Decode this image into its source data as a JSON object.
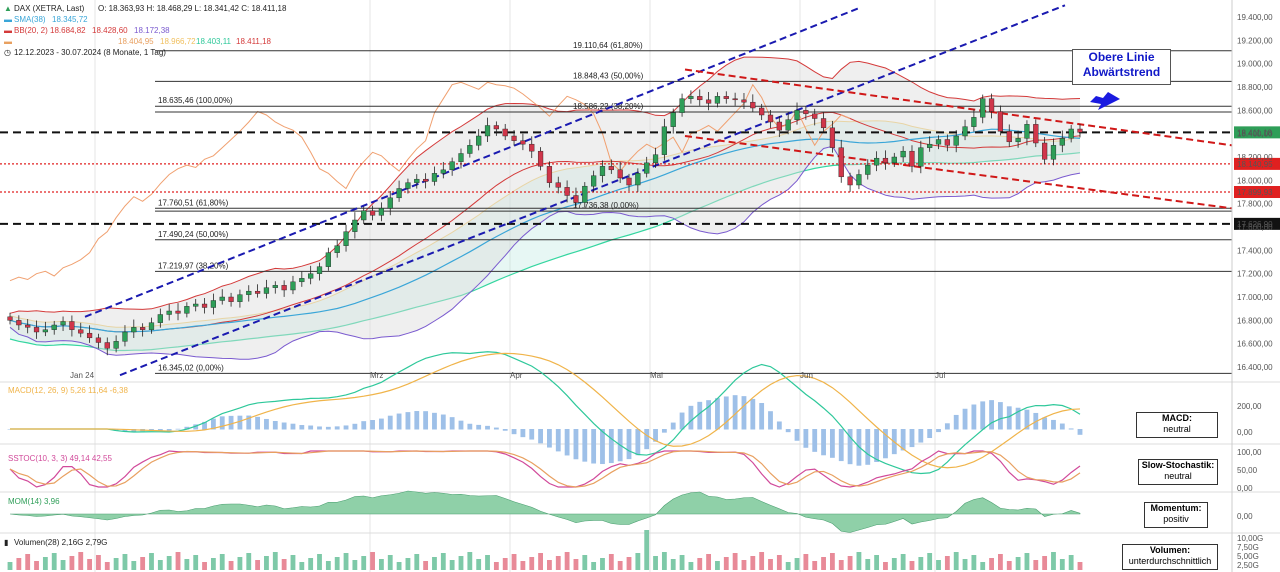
{
  "header": {
    "instrument": "DAX (XETRA, Last)",
    "ohlc": "O: 18.363,93  H: 18.468,29  L: 18.341,42  C: 18.411,18",
    "sma_label": "SMA(38)",
    "sma_value": "18.345,72",
    "bb_label": "BB(20, 2)",
    "bb_values": [
      "18.684,82",
      "18.428,60",
      "18.172,38"
    ],
    "ichimoku_values": [
      "18.404,95",
      "18.966,72",
      "18.403,11",
      "18.411,18"
    ],
    "range": "12.12.2023 - 30.07.2024 (8 Monate, 1 Tag)"
  },
  "colors": {
    "up": "#2e9e58",
    "down": "#d0364a",
    "sma": "#3aa6d8",
    "bb": "#d43a3a",
    "channel_up": "#1a1ab0",
    "channel_down": "#d01818",
    "cloud": "#9fe0d4",
    "macd": "#2ec89a",
    "signal": "#f0b44a",
    "stoch_k": "#d14a9a",
    "stoch_d": "#e8a060",
    "volume_up": "#7ec9a8",
    "volume_down": "#e88a98"
  },
  "fib_levels": [
    {
      "label": "19.110,64 (61,80%)",
      "value": 19110.64
    },
    {
      "label": "18.848,43 (50,00%)",
      "value": 18848.43
    },
    {
      "label": "18.635,46 (100,00%)",
      "value": 18635.46
    },
    {
      "label": "18.586,22 (38,20%)",
      "value": 18586.22
    },
    {
      "label": "17.760,51 (61,80%)",
      "value": 17760.51
    },
    {
      "label": "17.736,38 (0,00%)",
      "value": 17736.38
    },
    {
      "label": "17.490,24 (50,00%)",
      "value": 17490.24
    },
    {
      "label": "17.219,97 (38,20%)",
      "value": 17219.97
    },
    {
      "label": "16.345,02 (0,00%)",
      "value": 16345.02
    }
  ],
  "price_tags": [
    {
      "label": "18.411,18",
      "value": 18411.18,
      "kind": "last"
    },
    {
      "label": "18.140,95",
      "value": 18140.95,
      "kind": "red"
    },
    {
      "label": "17.899,93",
      "value": 17899.93,
      "kind": "red"
    },
    {
      "label": "17.626,90",
      "value": 17626.9,
      "kind": "black"
    }
  ],
  "callout": {
    "line1": "Obere Linie",
    "line2": "Abwärtstrend"
  },
  "panels": {
    "macd": {
      "legend": "MACD(12, 26, 9) 5,26  11,64  -6,38",
      "box": [
        "MACD:",
        "neutral"
      ],
      "ticks": [
        "200,00",
        "0,00"
      ]
    },
    "stoch": {
      "legend": "SSTOC(10, 3, 3) 49,14  42,55",
      "box": [
        "Slow-Stochastik:",
        "neutral"
      ],
      "ticks": [
        "100,00",
        "50,00",
        "0,00"
      ]
    },
    "mom": {
      "legend": "MOM(14) 3,96",
      "box": [
        "Momentum:",
        "positiv"
      ],
      "ticks": [
        "0,00"
      ]
    },
    "vol": {
      "legend": "Volumen(28) 2,16G  2,79G",
      "box": [
        "Volumen:",
        "unterdurchschnittlich"
      ],
      "ticks": [
        "10,00G",
        "7,50G",
        "5,00G",
        "2,50G"
      ]
    }
  },
  "chart_data": {
    "type": "candlestick",
    "title": "DAX (XETRA, Last)",
    "y_ticks": [
      "19.400,00",
      "19.200,00",
      "19.000,00",
      "18.800,00",
      "18.600,00",
      "18.400,00",
      "18.200,00",
      "18.000,00",
      "17.800,00",
      "17.600,00",
      "17.400,00",
      "17.200,00",
      "17.000,00",
      "16.800,00",
      "16.600,00",
      "16.400,00"
    ],
    "ylim": [
      16300,
      19480
    ],
    "x_labels": [
      "Jan 24",
      "Mrz",
      "Apr",
      "Mai",
      "Jun",
      "Jul"
    ],
    "close": [
      16800,
      16760,
      16740,
      16700,
      16720,
      16760,
      16790,
      16720,
      16690,
      16650,
      16610,
      16560,
      16620,
      16700,
      16740,
      16720,
      16780,
      16850,
      16880,
      16860,
      16920,
      16940,
      16910,
      16970,
      17000,
      16960,
      17020,
      17050,
      17030,
      17080,
      17100,
      17060,
      17130,
      17160,
      17200,
      17260,
      17380,
      17440,
      17560,
      17660,
      17740,
      17700,
      17760,
      17850,
      17930,
      17980,
      18010,
      17990,
      18060,
      18090,
      18160,
      18230,
      18300,
      18380,
      18470,
      18440,
      18380,
      18340,
      18310,
      18250,
      18120,
      17980,
      17940,
      17870,
      17810,
      17950,
      18040,
      18120,
      18090,
      18020,
      17960,
      18060,
      18150,
      18220,
      18460,
      18580,
      18700,
      18720,
      18690,
      18660,
      18720,
      18700,
      18690,
      18670,
      18620,
      18560,
      18500,
      18430,
      18520,
      18600,
      18570,
      18530,
      18450,
      18280,
      18030,
      17960,
      18050,
      18130,
      18190,
      18150,
      18200,
      18250,
      18120,
      18280,
      18310,
      18350,
      18300,
      18380,
      18460,
      18540,
      18700,
      18590,
      18420,
      18330,
      18360,
      18480,
      18320,
      18180,
      18300,
      18360,
      18440,
      18411
    ]
  }
}
